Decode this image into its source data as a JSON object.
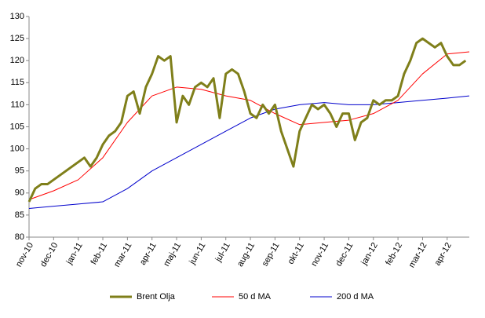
{
  "chart_data": {
    "type": "line",
    "xlim": [
      0,
      17.9
    ],
    "xticks": [
      {
        "value": 0,
        "label": "nov-10"
      },
      {
        "value": 1,
        "label": "dec-10"
      },
      {
        "value": 2,
        "label": "jan-11"
      },
      {
        "value": 3,
        "label": "feb-11"
      },
      {
        "value": 4,
        "label": "mar-11"
      },
      {
        "value": 5,
        "label": "apr-11"
      },
      {
        "value": 6,
        "label": "maj-11"
      },
      {
        "value": 7,
        "label": "jun-11"
      },
      {
        "value": 8,
        "label": "jul-11"
      },
      {
        "value": 9,
        "label": "aug-11"
      },
      {
        "value": 10,
        "label": "sep-11"
      },
      {
        "value": 11,
        "label": "okt-11"
      },
      {
        "value": 12,
        "label": "nov-11"
      },
      {
        "value": 13,
        "label": "dec-11"
      },
      {
        "value": 14,
        "label": "jan-12"
      },
      {
        "value": 15,
        "label": "feb-12"
      },
      {
        "value": 16,
        "label": "mar-12"
      },
      {
        "value": 17,
        "label": "apr-12"
      }
    ],
    "ylim": [
      80,
      130
    ],
    "yticks": [
      80,
      85,
      90,
      95,
      100,
      105,
      110,
      115,
      120,
      125,
      130
    ],
    "grid": false,
    "legend": "bottom",
    "series": [
      {
        "name": "Brent Olja",
        "color": "#7f7f1a",
        "width": 3,
        "x": [
          0,
          0.25,
          0.5,
          0.75,
          1,
          1.25,
          1.5,
          1.75,
          2,
          2.25,
          2.5,
          2.75,
          3,
          3.25,
          3.5,
          3.75,
          4,
          4.25,
          4.5,
          4.75,
          5,
          5.25,
          5.5,
          5.75,
          6,
          6.25,
          6.5,
          6.75,
          7,
          7.25,
          7.5,
          7.75,
          8,
          8.25,
          8.5,
          8.75,
          9,
          9.25,
          9.5,
          9.75,
          10,
          10.25,
          10.5,
          10.75,
          11,
          11.25,
          11.5,
          11.75,
          12,
          12.25,
          12.5,
          12.75,
          13,
          13.25,
          13.5,
          13.75,
          14,
          14.25,
          14.5,
          14.75,
          15,
          15.25,
          15.5,
          15.75,
          16,
          16.25,
          16.5,
          16.75,
          17,
          17.25,
          17.5,
          17.75
        ],
        "values": [
          88,
          91,
          92,
          92,
          93,
          94,
          95,
          96,
          97,
          98,
          96,
          98,
          101,
          103,
          104,
          106,
          112,
          113,
          108,
          114,
          117,
          121,
          120,
          121,
          106,
          112,
          110,
          114,
          115,
          114,
          116,
          107,
          117,
          118,
          117,
          113,
          108,
          107,
          110,
          108,
          110,
          104,
          100,
          96,
          104,
          107,
          110,
          109,
          110,
          108,
          105,
          108,
          108,
          102,
          106,
          107,
          111,
          110,
          111,
          111,
          112,
          117,
          120,
          124,
          125,
          124,
          123,
          124,
          121,
          119,
          119,
          120
        ]
      },
      {
        "name": "50 d MA",
        "color": "#ff0000",
        "width": 1,
        "x": [
          0,
          1,
          2,
          3,
          4,
          5,
          6,
          7,
          8,
          9,
          10,
          11,
          12,
          13,
          14,
          15,
          16,
          17,
          17.9
        ],
        "values": [
          88.5,
          90.5,
          93,
          98,
          106,
          112,
          114,
          113.5,
          112,
          111,
          108,
          105.5,
          106,
          106.5,
          108,
          111,
          117,
          121.5,
          122
        ]
      },
      {
        "name": "200 d MA",
        "color": "#0000cc",
        "width": 1,
        "x": [
          0,
          1,
          2,
          3,
          4,
          5,
          6,
          7,
          8,
          9,
          10,
          11,
          12,
          13,
          14,
          15,
          16,
          17,
          17.9
        ],
        "values": [
          86.5,
          87,
          87.5,
          88,
          91,
          95,
          98,
          101,
          104,
          107,
          109,
          110,
          110.5,
          110,
          110,
          110.5,
          111,
          111.5,
          112
        ]
      }
    ]
  }
}
